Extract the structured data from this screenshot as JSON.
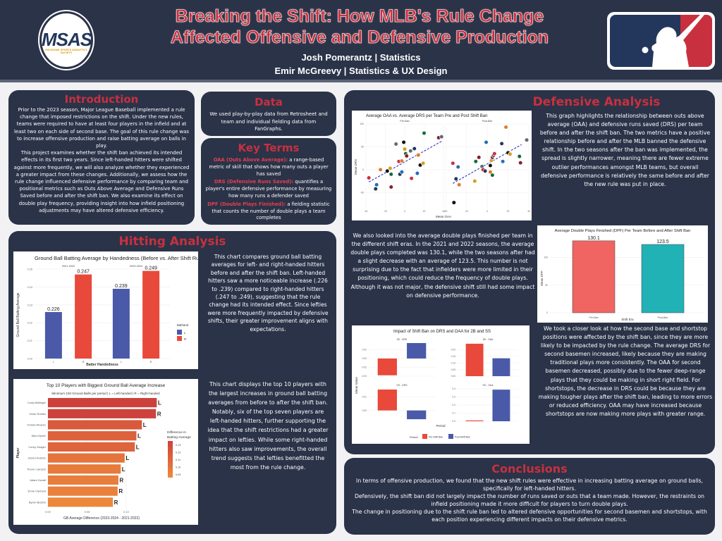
{
  "header": {
    "title_line1": "Breaking the Shift: How MLB's Rule Change",
    "title_line2": "Affected Offensive and Defensive Production",
    "authors": [
      "Josh Pomerantz | Statistics",
      "Emir McGreevy | Statistics & UX Design"
    ],
    "left_logo_text": "MSAS",
    "left_logo_subtext": "MICHIGAN SPORTS ANALYTICS SOCIETY",
    "right_logo": "mlb-logo-icon"
  },
  "intro": {
    "heading": "Introduction",
    "p1": "Prior to the 2023 season, Major League Baseball implemented a rule change that imposed restrictions on the shift. Under the new rules, teams were required to have at least four players in the infield and at least two on each side of second base. The goal of this rule change was to increase offensive production and raise batting average on balls in play.",
    "p2": "This project examines whether the shift ban achieved its intended effects in its first two years. Since left-handed hitters were shifted against more frequently, we will also analyze whether they experienced a greater impact from these changes. Additionally, we assess how the rule change influenced defensive performance by comparing team and positional metrics such as Outs Above Average and Defensive Runs Saved before and after the shift ban. We also examine its effect on double play frequency, providing insight into how infield positioning adjustments may have altered defensive efficiency."
  },
  "data_section": {
    "heading": "Data",
    "text": "We used play-by-play data from Retrosheet and team and individual fielding data from FanGraphs."
  },
  "key_terms": {
    "heading": "Key Terms",
    "terms": [
      {
        "term": "OAA (Outs Above Average):",
        "definition": " a range-based metric of skill that shows how many outs a player has saved"
      },
      {
        "term": "DRS (Defensive Runs Saved):",
        "definition": " quantifies a player's entire defensive performance by measuring how many runs a defender saved"
      },
      {
        "term": "DPF (Double Plays Finished):",
        "definition": " a fielding statistic that counts the number of double plays a team completes"
      }
    ]
  },
  "hitting": {
    "heading": "Hitting Analysis",
    "text1": "This chart compares ground ball batting averages for left- and right-handed hitters before and after the shift ban. Left-handed hitters saw a more noticeable increase (.226 to .239) compared to right-handed hitters (.247 to .249), suggesting that the rule change had its intended effect. Since lefties were more frequently impacted by defensive shifts, their greater improvement aligns with expectations.",
    "text2": "This chart displays the top 10 players with the largest increases in ground ball batting averages from before to after the shift ban. Notably, six of the top seven players are left-handed hitters, further supporting the idea that the shift restrictions had a greater impact on lefties. While some right-handed hitters also saw improvements, the overall trend suggests that lefties benefitted the most from the rule change."
  },
  "defensive": {
    "heading": "Defensive Analysis",
    "text1": "This graph highlights the relationship between outs above average (OAA) and defensive runs saved (DRS) per team before and after the shift ban. The two metrics have a positive relationship before and after the MLB banned the defensive shift. In the two seasons after the ban was implemented, the spread is slightly narrower, meaning there are fewer extreme outlier performances amongst MLB teams, but overall defensive performance is relatively the same before and after the new rule was put in place.",
    "text2": "We also looked into the average double plays finished per team in the different shift eras. In the 2021 and 2022 seasons, the average double plays completed was 130.1, while the two seasons after had a slight decrease with an average of 123.5. This number is not surprising due to the fact that infielders were more limited in their positioning, which could reduce the frequency of double plays. Although it was not major, the defensive shift still had some impact on defensive performance.",
    "text3": "We took a closer look at how the second base and shortstop positions were affected by the shift ban, since they are more likely to be impacted by the rule change. The average DRS for second basemen increased, likely because they are making traditional plays more consistently. The OAA for second basemen decreased, possibly due to the fewer deep-range plays that they could be making in short right field. For shortstops, the decrease in DRS could be because they are making tougher plays after the shift ban, leading to more errors or reduced efficiency. OAA may have increased because shortstops are now making more plays with greater range."
  },
  "conclusions": {
    "heading": "Conclusions",
    "lines": [
      "In terms of offensive production, we found that the new shift rules were effective in increasing batting average on ground balls, specifically for left-handed hitters.",
      "Defensively, the shift ban did not largely impact the number of runs saved or outs that a team made. However, the restraints on infield positioning made it more difficult for players to turn double plays.",
      "The change in positioning due to the shift rule ban led to altered defensive opportunities for second basemen and shortstops, with each position experiencing different impacts on their defensive metrics."
    ]
  },
  "colors": {
    "navy": "#2b3348",
    "accent_red": "#c8303f",
    "bar_blue": "#4a5aa8",
    "bar_red": "#e8493a",
    "dpf_red": "#f06461",
    "dpf_teal": "#20b2b5"
  },
  "chart_data": [
    {
      "id": "gb-avg",
      "type": "bar",
      "title": "Ground Ball Batting Average by Handedness (Before vs. After Shift Rule)",
      "facets": [
        "2021-2022",
        "2023-2024"
      ],
      "categories": [
        "L",
        "R"
      ],
      "series": [
        {
          "facet": "2021-2022",
          "values": [
            0.226,
            0.247
          ]
        },
        {
          "facet": "2023-2024",
          "values": [
            0.239,
            0.249
          ]
        }
      ],
      "labels": [
        "0.226",
        "0.247",
        "0.239",
        "0.249"
      ],
      "xlabel": "Batter Handedness",
      "ylabel": "Ground Ball Batting Average",
      "ylim": [
        0.2,
        0.25
      ],
      "yticks": [
        "0.20",
        "0.21",
        "0.22",
        "0.23",
        "0.24",
        "0.25"
      ],
      "legend": {
        "title": "Bathand",
        "items": [
          "L",
          "R"
        ],
        "position": "right"
      }
    },
    {
      "id": "top10",
      "type": "bar",
      "orientation": "horizontal",
      "title": "Top 10 Players with Biggest Ground Ball Average Increase",
      "subtitle": "Minimum 100 Ground Balls per period | L = Left-handed | R = Right-handed",
      "categories": [
        "Cody Bellinger",
        "Victor Robles",
        "Yordan Alvarez",
        "Max Kepler",
        "Corey Seager",
        "Jarred Kelenic",
        "Trevor Larnach",
        "Adam Duvall",
        "Ernie Clement",
        "Byron Buxton"
      ],
      "hands": [
        "L",
        "R",
        "L",
        "L",
        "L",
        "L",
        "L",
        "R",
        "R",
        "R"
      ],
      "values": [
        0.139,
        0.138,
        0.12,
        0.113,
        0.111,
        0.098,
        0.093,
        0.09,
        0.089,
        0.083
      ],
      "xlabel": "GB Average Difference (2023-2024 - 2021-2022)",
      "ylabel": "Player",
      "xticks": [
        "0.00",
        "0.05",
        "0.10"
      ],
      "xlim": [
        0,
        0.145
      ],
      "legend": {
        "title": "Difference in Batting Average",
        "ticks": [
          "0.13",
          "0.12",
          "0.11",
          "0.10",
          "0.09"
        ],
        "position": "right"
      }
    },
    {
      "id": "oaa-drs",
      "type": "scatter",
      "title": "Average OAA vs. Average DRS per Team Pre and Post Shift Ban",
      "facets": [
        "Pre-Ban",
        "Post-Ban"
      ],
      "xlabel": "Mean OAA",
      "ylabel": "Mean DRS",
      "xlim": [
        -40,
        40
      ],
      "ylim": [
        -85,
        100
      ],
      "xticks": [
        "-40",
        "-20",
        "0",
        "20",
        "40"
      ],
      "yticks": [
        "100",
        "50",
        "0",
        "-50"
      ],
      "series": [
        {
          "name": "Pre-Ban",
          "points": [
            [
              -37,
              -18
            ],
            [
              -30,
              -42
            ],
            [
              -29,
              -33
            ],
            [
              -25,
              0
            ],
            [
              -18,
              -3
            ],
            [
              -15,
              3
            ],
            [
              -14,
              -10
            ],
            [
              -14,
              -38
            ],
            [
              -9,
              56
            ],
            [
              -6,
              18
            ],
            [
              -5,
              -10
            ],
            [
              -3,
              -5
            ],
            [
              -3,
              19
            ],
            [
              -1,
              60
            ],
            [
              0,
              45
            ],
            [
              1,
              35
            ],
            [
              2,
              30
            ],
            [
              6,
              41
            ],
            [
              7,
              -19
            ],
            [
              10,
              46
            ],
            [
              13,
              -8
            ],
            [
              14,
              32
            ],
            [
              16,
              10
            ],
            [
              19,
              14
            ],
            [
              20,
              80
            ],
            [
              35,
              70
            ],
            [
              38,
              72
            ]
          ],
          "trend": [
            [
              -37,
              -27
            ],
            [
              38,
              62
            ]
          ]
        },
        {
          "name": "Post-Ban",
          "points": [
            [
              -33,
              14
            ],
            [
              -30,
              -20
            ],
            [
              -28,
              6
            ],
            [
              -27,
              -33
            ],
            [
              -32,
              -72
            ],
            [
              -12,
              -25
            ],
            [
              -11,
              18
            ],
            [
              -8,
              27
            ],
            [
              -5,
              7
            ],
            [
              -4,
              0
            ],
            [
              -2,
              -3
            ],
            [
              -1,
              60
            ],
            [
              3,
              -5
            ],
            [
              3,
              9
            ],
            [
              4,
              20
            ],
            [
              5,
              -12
            ],
            [
              5,
              27
            ],
            [
              6,
              31
            ],
            [
              7,
              35
            ],
            [
              14,
              57
            ],
            [
              15,
              18
            ],
            [
              18,
              93
            ],
            [
              20,
              37
            ],
            [
              22,
              34
            ],
            [
              31,
              29
            ],
            [
              32,
              15
            ],
            [
              38,
              65
            ]
          ],
          "trend": [
            [
              -33,
              -30
            ],
            [
              33,
              55
            ]
          ]
        }
      ]
    },
    {
      "id": "dpf",
      "type": "bar",
      "title": "Average Double Plays Finished (DPF) Per Team Before and After Shift Ban",
      "categories": [
        "Pre-Ban",
        "Post-Ban"
      ],
      "values": [
        130.1,
        123.5
      ],
      "labels": [
        "130.1",
        "123.5"
      ],
      "xlabel": "Shift Era",
      "ylabel": "Mean DPF",
      "ylim": [
        0,
        135
      ],
      "yticks": [
        "0",
        "50",
        "100"
      ]
    },
    {
      "id": "pos-impact",
      "type": "bar",
      "title": "Impact of Shift Ban on DRS and OAA for 2B and SS",
      "xlabel": "Period",
      "ylabel": "Mean Value",
      "legend": {
        "title": "Period",
        "items": [
          "Pre-Shift Ban",
          "Post-Shift Ban"
        ],
        "position": "bottom"
      },
      "panels": [
        {
          "name": "2B - DRS",
          "values": [
            -0.038,
            0.035
          ],
          "ylim": [
            -0.04,
            0.035
          ],
          "yticks": [
            "0.02",
            "0.00",
            "-0.02",
            "-0.04"
          ]
        },
        {
          "name": "2B - OAA",
          "values": [
            0.245,
            0.135
          ],
          "ylim": [
            0,
            0.25
          ],
          "yticks": [
            "0.20",
            "0.15",
            "0.10",
            "0.05",
            "0.00"
          ]
        },
        {
          "name": "SS - DRS",
          "values": [
            0.0155,
            -0.0065
          ],
          "ylim": [
            -0.008,
            0.016
          ],
          "yticks": [
            "0.01",
            "0.00"
          ]
        },
        {
          "name": "SS - OAA",
          "values": [
            0.01,
            0.39
          ],
          "ylim": [
            0,
            0.4
          ],
          "yticks": [
            "0.4",
            "0.3",
            "0.2",
            "0.1",
            "0.0"
          ]
        }
      ]
    }
  ]
}
